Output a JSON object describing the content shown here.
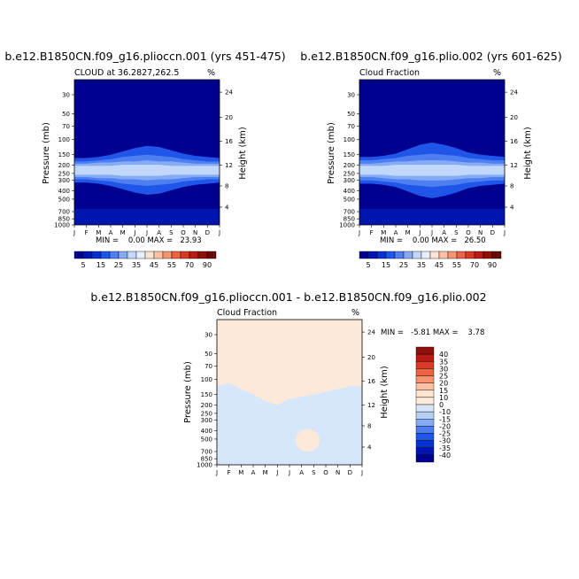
{
  "chart_data": [
    {
      "type": "heatmap",
      "title": "b.e12.B1850CN.f09_g16.plioccn.001 (yrs 451-475)",
      "subtitle": "CLOUD at 36.2827,262.5",
      "units": "%",
      "xlabel": "",
      "ylabel": "Pressure (mb)",
      "right_label": "Height (km)",
      "x_ticks": [
        "J",
        "F",
        "M",
        "A",
        "M",
        "J",
        "J",
        "A",
        "S",
        "O",
        "N",
        "D",
        "J"
      ],
      "y_ticks": [
        "30",
        "50",
        "70",
        "100",
        "150",
        "200",
        "250",
        "300",
        "400",
        "500",
        "700",
        "850",
        "1000"
      ],
      "right_ticks": [
        "24",
        "20",
        "16",
        "12",
        "8",
        "4"
      ],
      "ylim": [
        1000,
        20
      ],
      "stats": "MIN =    0.00 MAX =   23.93",
      "colorbar": {
        "labels": [
          "5",
          "15",
          "25",
          "35",
          "45",
          "55",
          "70",
          "90"
        ],
        "colors": [
          "#00008f",
          "#0015b0",
          "#0633cf",
          "#1f55e8",
          "#4e7ff0",
          "#86abf5",
          "#c2d8fa",
          "#e6effd",
          "#fde4d2",
          "#fcc0a2",
          "#f7936e",
          "#ee6244",
          "#d83a26",
          "#b81c14",
          "#900f0c",
          "#6b0908"
        ]
      },
      "bands_by_month": [
        [
          5,
          5,
          5,
          5,
          5,
          5,
          5,
          5,
          5,
          5,
          5,
          5,
          5
        ],
        [
          9,
          9,
          10,
          11,
          12,
          13,
          14,
          14,
          13,
          12,
          11,
          10,
          9
        ],
        [
          11,
          11,
          12,
          14,
          17,
          20,
          22,
          21,
          18,
          15,
          13,
          12,
          11
        ],
        [
          8,
          8,
          9,
          10,
          12,
          13,
          14,
          13,
          12,
          10,
          9,
          8,
          8
        ],
        [
          6,
          6,
          7,
          7,
          8,
          8,
          9,
          8,
          8,
          7,
          6,
          6,
          6
        ],
        [
          4,
          4,
          4,
          4,
          5,
          5,
          5,
          5,
          4,
          4,
          4,
          4,
          4
        ]
      ]
    },
    {
      "type": "heatmap",
      "title": "b.e12.B1850CN.f09_g16.plio.002 (yrs 601-625)",
      "subtitle": "Cloud Fraction",
      "units": "%",
      "xlabel": "",
      "ylabel": "Pressure (mb)",
      "right_label": "Height (km)",
      "x_ticks": [
        "J",
        "F",
        "M",
        "A",
        "M",
        "J",
        "J",
        "A",
        "S",
        "O",
        "N",
        "D",
        "J"
      ],
      "y_ticks": [
        "30",
        "50",
        "70",
        "100",
        "150",
        "200",
        "250",
        "300",
        "400",
        "500",
        "700",
        "850",
        "1000"
      ],
      "right_ticks": [
        "24",
        "20",
        "16",
        "12",
        "8",
        "4"
      ],
      "ylim": [
        1000,
        20
      ],
      "stats": "MIN =    0.00 MAX =   26.50",
      "colorbar": {
        "labels": [
          "5",
          "15",
          "25",
          "35",
          "45",
          "55",
          "70",
          "90"
        ],
        "colors": [
          "#00008f",
          "#0015b0",
          "#0633cf",
          "#1f55e8",
          "#4e7ff0",
          "#86abf5",
          "#c2d8fa",
          "#e6effd",
          "#fde4d2",
          "#fcc0a2",
          "#f7936e",
          "#ee6244",
          "#d83a26",
          "#b81c14",
          "#900f0c",
          "#6b0908"
        ]
      },
      "bands_by_month": [
        [
          5,
          5,
          5,
          5,
          5,
          5,
          5,
          5,
          5,
          5,
          5,
          5,
          5
        ],
        [
          10,
          10,
          11,
          12,
          13,
          14,
          15,
          15,
          14,
          13,
          12,
          11,
          10
        ],
        [
          12,
          12,
          13,
          15,
          19,
          23,
          25,
          23,
          20,
          16,
          14,
          13,
          12
        ],
        [
          9,
          9,
          10,
          11,
          13,
          14,
          15,
          14,
          13,
          11,
          10,
          9,
          9
        ],
        [
          6,
          6,
          7,
          8,
          8,
          9,
          9,
          9,
          8,
          7,
          7,
          6,
          6
        ],
        [
          4,
          4,
          4,
          5,
          5,
          5,
          5,
          5,
          5,
          4,
          4,
          4,
          4
        ]
      ]
    },
    {
      "type": "heatmap",
      "title": "b.e12.B1850CN.f09_g16.plioccn.001 - b.e12.B1850CN.f09_g16.plio.002",
      "subtitle": "Cloud Fraction",
      "units": "%",
      "xlabel": "",
      "ylabel": "Pressure (mb)",
      "right_label": "Height (km)",
      "x_ticks": [
        "J",
        "F",
        "M",
        "A",
        "M",
        "J",
        "J",
        "A",
        "S",
        "O",
        "N",
        "D",
        "J"
      ],
      "y_ticks": [
        "30",
        "50",
        "70",
        "100",
        "150",
        "200",
        "250",
        "300",
        "400",
        "500",
        "700",
        "850",
        "1000"
      ],
      "right_ticks": [
        "24",
        "20",
        "16",
        "12",
        "8",
        "4"
      ],
      "ylim": [
        1000,
        20
      ],
      "stats": "MIN =   -5.81 MAX =    3.78",
      "colorbar": {
        "labels": [
          "40",
          "35",
          "30",
          "25",
          "20",
          "15",
          "10",
          "0",
          "-10",
          "-15",
          "-20",
          "-25",
          "-30",
          "-35",
          "-40"
        ],
        "colors": [
          "#900f0c",
          "#b81c14",
          "#d83a26",
          "#ee6244",
          "#f7936e",
          "#fcc0a2",
          "#fde4d2",
          "#fde9d9",
          "#d6e6fb",
          "#b6cff5",
          "#86abf5",
          "#4e7ff0",
          "#1f55e8",
          "#0633cf",
          "#0015b0",
          "#00008f"
        ]
      },
      "zero_contour_pressure_by_month": [
        120,
        110,
        130,
        150,
        180,
        200,
        170,
        160,
        150,
        140,
        130,
        120,
        120
      ],
      "pos_region": {
        "months": [
          6.5,
          8.5
        ],
        "pressure": [
          380,
          700
        ],
        "value": 1.5
      },
      "upper_value": 1.0,
      "lower_value": -1.5
    }
  ]
}
